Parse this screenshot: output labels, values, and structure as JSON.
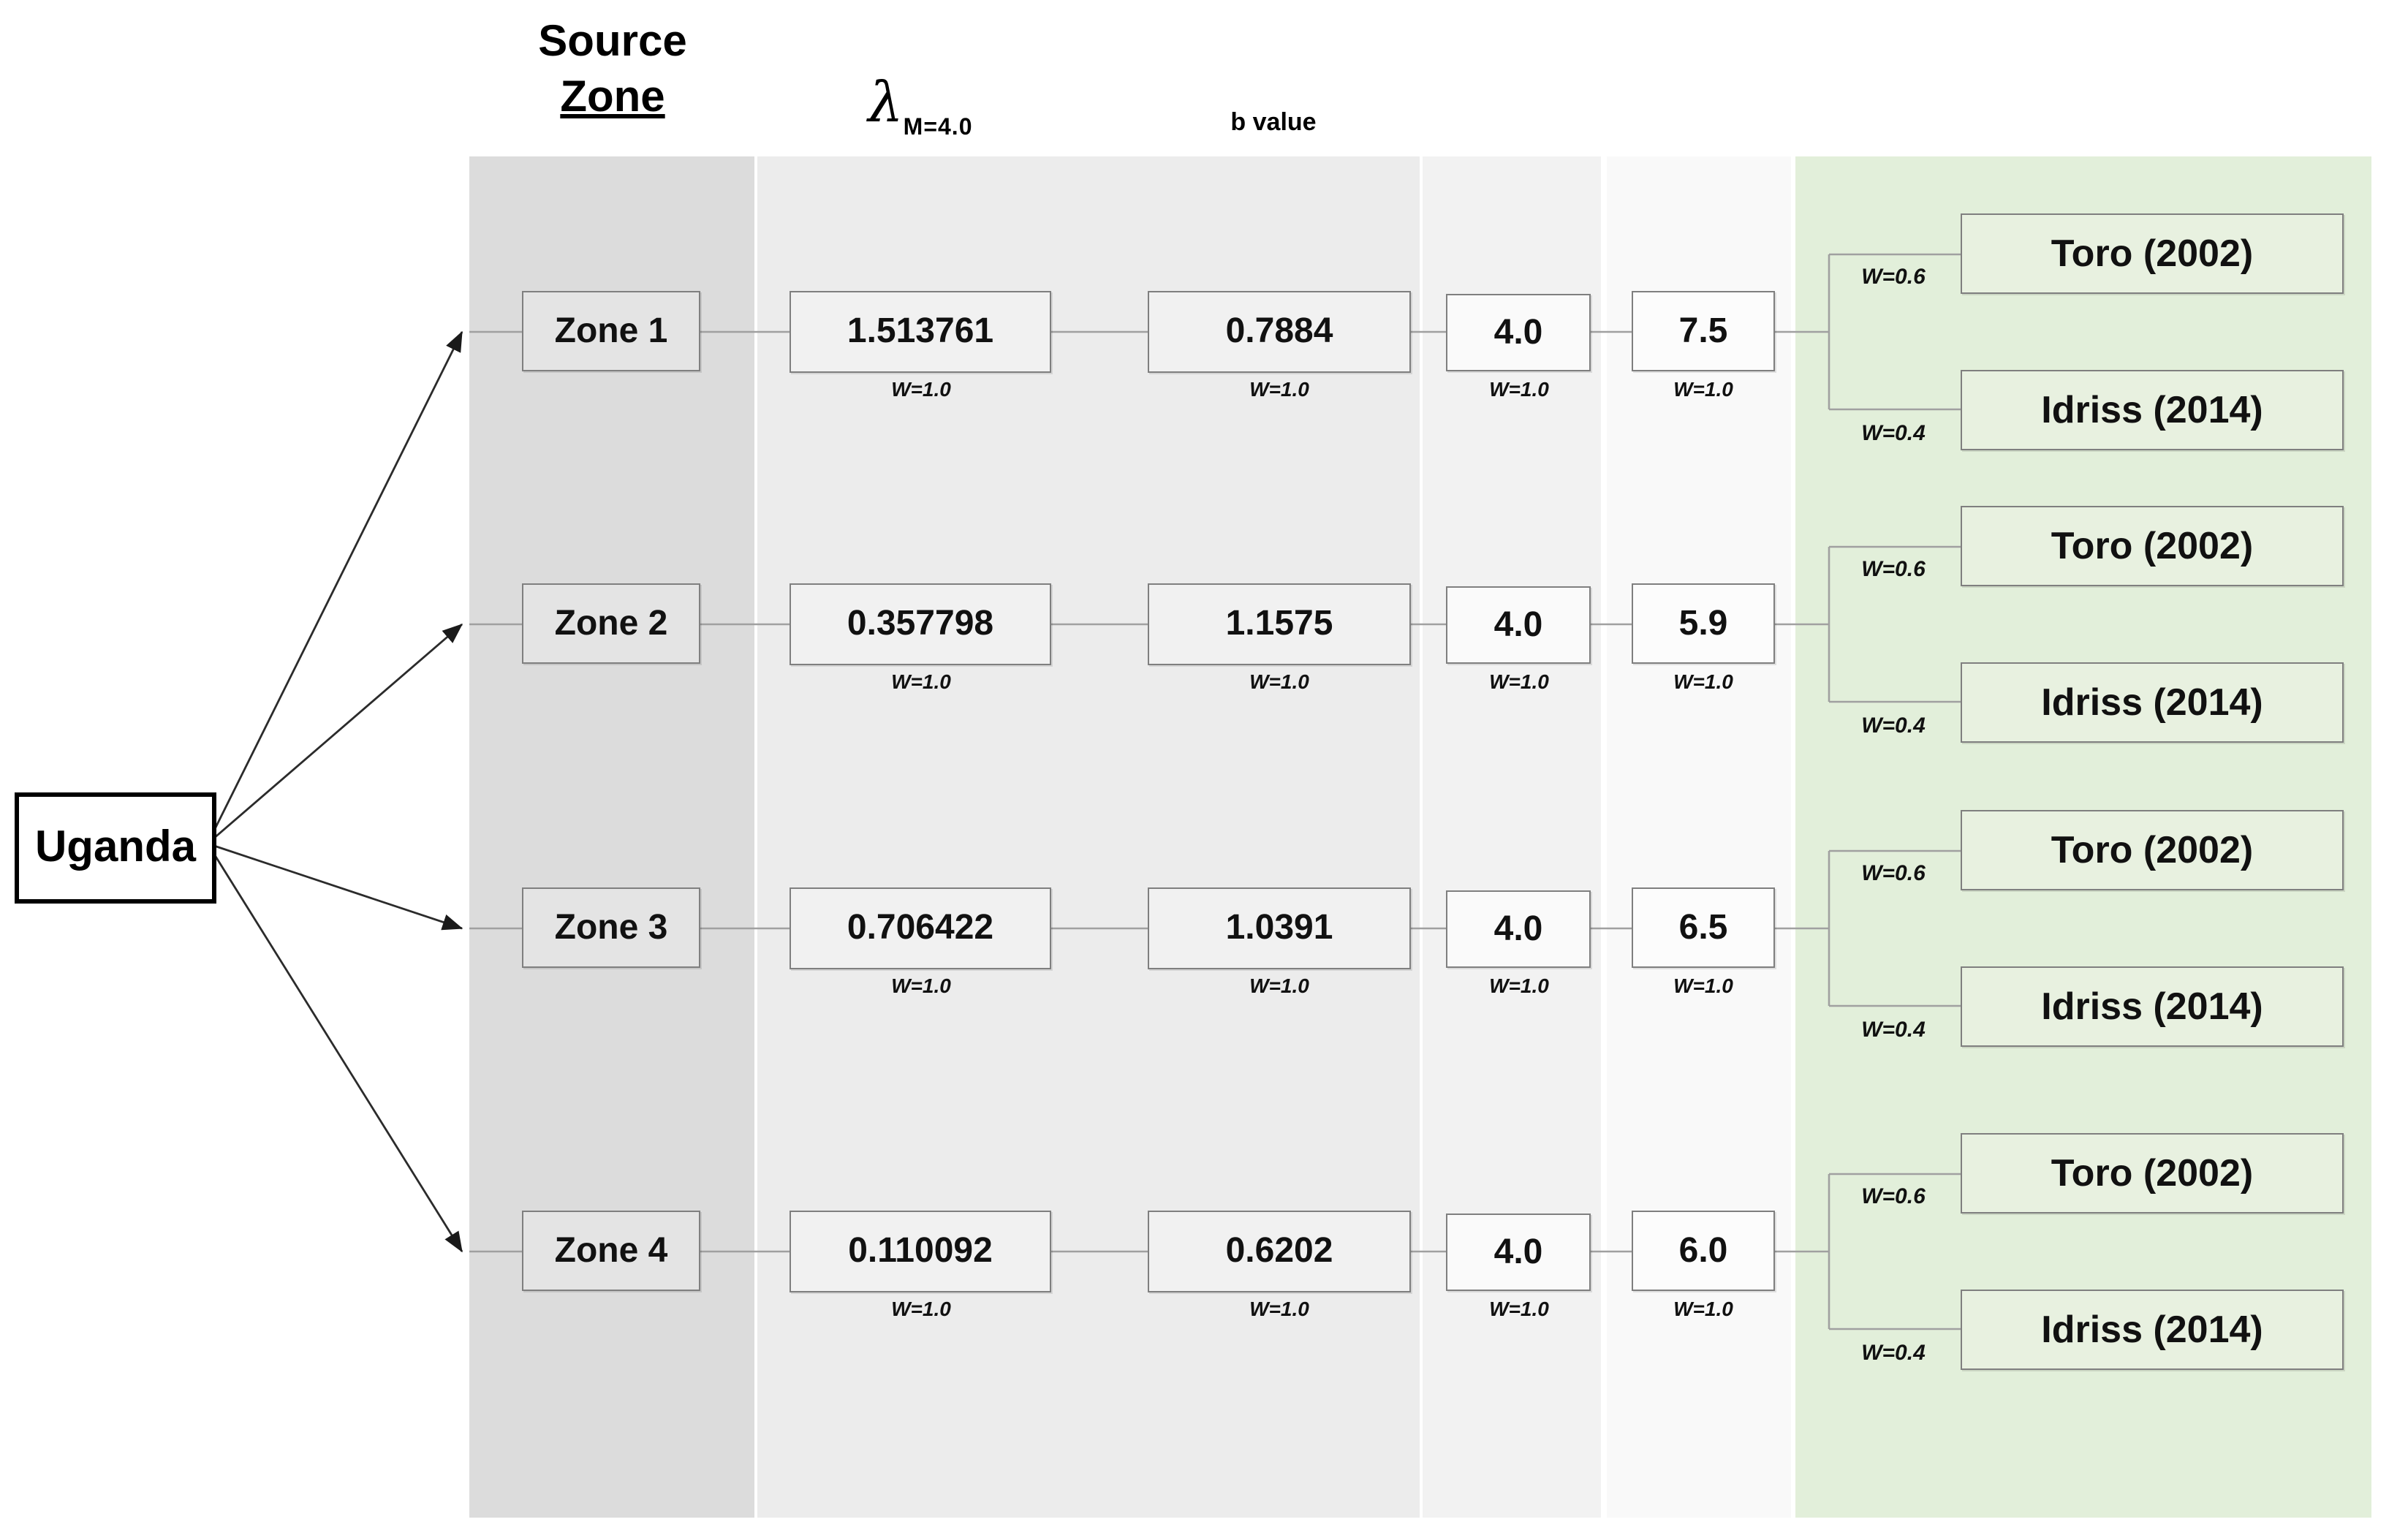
{
  "root": {
    "label": "Uganda"
  },
  "headers": {
    "source_zone": [
      "Source",
      "Zone"
    ],
    "lambda_symbol": "λ",
    "lambda_subscript": "M=4.0",
    "b_value": "b value"
  },
  "zones": [
    {
      "label": "Zone 1",
      "lambda": "1.513761",
      "b_value": "0.7884",
      "m_min": "4.0",
      "m_max": "7.5",
      "weights": {
        "lambda": "W=1.0",
        "b_value": "W=1.0",
        "m_min": "W=1.0",
        "m_max": "W=1.0"
      },
      "gmpes": [
        {
          "label": "Toro (2002)",
          "weight": "W=0.6"
        },
        {
          "label": "Idriss (2014)",
          "weight": "W=0.4"
        }
      ]
    },
    {
      "label": "Zone 2",
      "lambda": "0.357798",
      "b_value": "1.1575",
      "m_min": "4.0",
      "m_max": "5.9",
      "weights": {
        "lambda": "W=1.0",
        "b_value": "W=1.0",
        "m_min": "W=1.0",
        "m_max": "W=1.0"
      },
      "gmpes": [
        {
          "label": "Toro (2002)",
          "weight": "W=0.6"
        },
        {
          "label": "Idriss (2014)",
          "weight": "W=0.4"
        }
      ]
    },
    {
      "label": "Zone 3",
      "lambda": "0.706422",
      "b_value": "1.0391",
      "m_min": "4.0",
      "m_max": "6.5",
      "weights": {
        "lambda": "W=1.0",
        "b_value": "W=1.0",
        "m_min": "W=1.0",
        "m_max": "W=1.0"
      },
      "gmpes": [
        {
          "label": "Toro (2002)",
          "weight": "W=0.6"
        },
        {
          "label": "Idriss (2014)",
          "weight": "W=0.4"
        }
      ]
    },
    {
      "label": "Zone 4",
      "lambda": "0.110092",
      "b_value": "0.6202",
      "m_min": "4.0",
      "m_max": "6.0",
      "weights": {
        "lambda": "W=1.0",
        "b_value": "W=1.0",
        "m_min": "W=1.0",
        "m_max": "W=1.0"
      },
      "gmpes": [
        {
          "label": "Toro (2002)",
          "weight": "W=0.6"
        },
        {
          "label": "Idriss (2014)",
          "weight": "W=0.4"
        }
      ]
    }
  ],
  "colors": {
    "column_zone": "#dcdcdc",
    "column_rates": "#ececec",
    "column_mmin": "#f2f2f2",
    "column_mmax": "#f9f9f9",
    "column_gmpe": "#e2efda",
    "box_border": "#7f7f7f",
    "connector": "#a0a0a0",
    "arrow": "#2b2b2b"
  }
}
